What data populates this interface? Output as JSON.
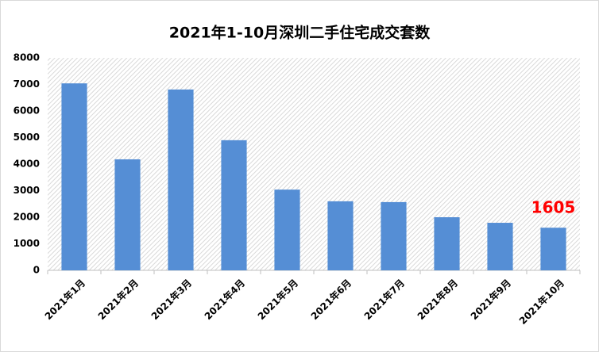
{
  "chart_data": {
    "type": "bar",
    "title": "2021年1-10月深圳二手住宅成交套数",
    "categories": [
      "2021年1月",
      "2021年2月",
      "2021年3月",
      "2021年4月",
      "2021年5月",
      "2021年6月",
      "2021年7月",
      "2021年8月",
      "2021年9月",
      "2021年10月"
    ],
    "values": [
      7040,
      4180,
      6810,
      4900,
      3040,
      2600,
      2570,
      2000,
      1790,
      1605
    ],
    "value_labels": [
      null,
      null,
      null,
      null,
      null,
      null,
      null,
      null,
      null,
      "1605"
    ],
    "value_label_color": "#ff0000",
    "color": "#558ed5",
    "ylim": [
      0,
      8000
    ],
    "yticks": [
      0,
      1000,
      2000,
      3000,
      4000,
      5000,
      6000,
      7000,
      8000
    ],
    "grid": false
  }
}
